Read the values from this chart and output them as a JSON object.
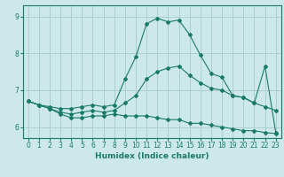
{
  "title": "",
  "xlabel": "Humidex (Indice chaleur)",
  "ylabel": "",
  "xlim": [
    -0.5,
    23.5
  ],
  "ylim": [
    5.7,
    9.3
  ],
  "bg_color": "#cce8e8",
  "grid_color": "#aacece",
  "line_color": "#1a7a6a",
  "xticks": [
    0,
    1,
    2,
    3,
    4,
    5,
    6,
    7,
    8,
    9,
    10,
    11,
    12,
    13,
    14,
    15,
    16,
    17,
    18,
    19,
    20,
    21,
    22,
    23
  ],
  "yticks": [
    6,
    7,
    8,
    9
  ],
  "series": [
    {
      "x": [
        0,
        1,
        2,
        3,
        4,
        5,
        6,
        7,
        8,
        9,
        10,
        11,
        12,
        13,
        14,
        15,
        16,
        17,
        18,
        19,
        20,
        21,
        22,
        23
      ],
      "y": [
        6.7,
        6.6,
        6.55,
        6.5,
        6.5,
        6.55,
        6.6,
        6.55,
        6.6,
        7.3,
        7.9,
        8.8,
        8.95,
        8.85,
        8.9,
        8.5,
        7.95,
        7.45,
        7.35,
        6.85,
        6.8,
        6.65,
        7.65,
        5.85
      ]
    },
    {
      "x": [
        0,
        1,
        2,
        3,
        4,
        5,
        6,
        7,
        8,
        9,
        10,
        11,
        12,
        13,
        14,
        15,
        16,
        17,
        18,
        19,
        20,
        21,
        22,
        23
      ],
      "y": [
        6.7,
        6.6,
        6.5,
        6.4,
        6.35,
        6.4,
        6.45,
        6.4,
        6.45,
        6.65,
        6.85,
        7.3,
        7.5,
        7.6,
        7.65,
        7.4,
        7.2,
        7.05,
        7.0,
        6.85,
        6.8,
        6.65,
        6.55,
        6.45
      ]
    },
    {
      "x": [
        0,
        1,
        2,
        3,
        4,
        5,
        6,
        7,
        8,
        9,
        10,
        11,
        12,
        13,
        14,
        15,
        16,
        17,
        18,
        19,
        20,
        21,
        22,
        23
      ],
      "y": [
        6.7,
        6.6,
        6.5,
        6.35,
        6.25,
        6.25,
        6.3,
        6.3,
        6.35,
        6.3,
        6.3,
        6.3,
        6.25,
        6.2,
        6.2,
        6.1,
        6.1,
        6.05,
        6.0,
        5.95,
        5.9,
        5.9,
        5.85,
        5.82
      ]
    }
  ]
}
